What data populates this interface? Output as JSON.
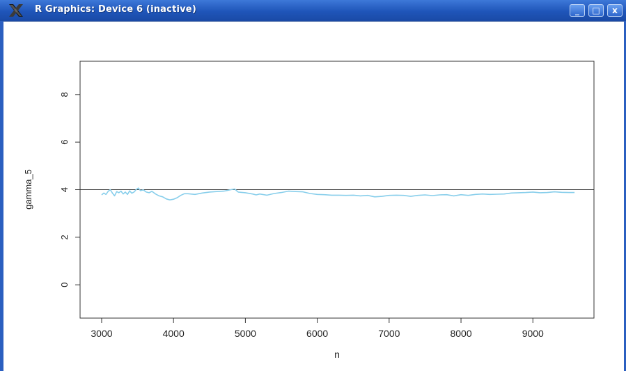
{
  "window": {
    "title": "R Graphics: Device 6 (inactive)",
    "buttons": {
      "minimize": "_",
      "maximize": "□",
      "close": "x"
    },
    "icons": {
      "app": "x11-x-icon",
      "minimize": "minimize-icon",
      "maximize": "maximize-icon",
      "close": "close-icon"
    },
    "accent_color": "#1f55b9"
  },
  "chart_data": {
    "type": "line",
    "title": "",
    "xlabel": "n",
    "ylabel": "gamma_5",
    "xlim": [
      2700,
      9850
    ],
    "ylim": [
      -1.4,
      9.4
    ],
    "xticks": [
      3000,
      4000,
      5000,
      6000,
      7000,
      8000,
      9000
    ],
    "yticks": [
      0,
      2,
      4,
      6,
      8
    ],
    "grid": false,
    "legend": "none",
    "reference_line": {
      "y": 4,
      "color": "#333333"
    },
    "series": [
      {
        "color": "#87ceeb",
        "x": [
          3000,
          3030,
          3060,
          3090,
          3120,
          3150,
          3180,
          3210,
          3240,
          3270,
          3300,
          3330,
          3360,
          3390,
          3420,
          3450,
          3480,
          3510,
          3540,
          3580,
          3620,
          3660,
          3700,
          3750,
          3800,
          3850,
          3900,
          3950,
          4000,
          4050,
          4100,
          4150,
          4200,
          4300,
          4400,
          4500,
          4600,
          4700,
          4800,
          4850,
          4900,
          5000,
          5100,
          5150,
          5200,
          5300,
          5400,
          5500,
          5600,
          5700,
          5800,
          5900,
          6000,
          6100,
          6200,
          6300,
          6400,
          6500,
          6600,
          6700,
          6800,
          6900,
          7000,
          7100,
          7200,
          7300,
          7400,
          7500,
          7600,
          7700,
          7800,
          7900,
          8000,
          8100,
          8200,
          8300,
          8400,
          8500,
          8600,
          8700,
          8800,
          8900,
          9000,
          9100,
          9200,
          9300,
          9400,
          9500,
          9580
        ],
        "values": [
          3.78,
          3.86,
          3.8,
          3.93,
          4.0,
          3.86,
          3.74,
          3.92,
          3.87,
          3.94,
          3.82,
          3.9,
          3.8,
          3.95,
          3.85,
          3.9,
          4.0,
          4.07,
          3.96,
          3.99,
          3.9,
          3.87,
          3.93,
          3.82,
          3.74,
          3.7,
          3.61,
          3.57,
          3.6,
          3.66,
          3.76,
          3.83,
          3.83,
          3.8,
          3.86,
          3.9,
          3.92,
          3.94,
          4.0,
          4.03,
          3.9,
          3.87,
          3.82,
          3.78,
          3.82,
          3.77,
          3.84,
          3.88,
          3.94,
          3.92,
          3.91,
          3.84,
          3.8,
          3.79,
          3.77,
          3.77,
          3.76,
          3.77,
          3.74,
          3.76,
          3.7,
          3.72,
          3.76,
          3.77,
          3.76,
          3.72,
          3.76,
          3.78,
          3.75,
          3.78,
          3.79,
          3.74,
          3.79,
          3.76,
          3.8,
          3.82,
          3.8,
          3.81,
          3.82,
          3.86,
          3.87,
          3.88,
          3.9,
          3.87,
          3.88,
          3.91,
          3.89,
          3.88,
          3.88
        ]
      }
    ]
  }
}
